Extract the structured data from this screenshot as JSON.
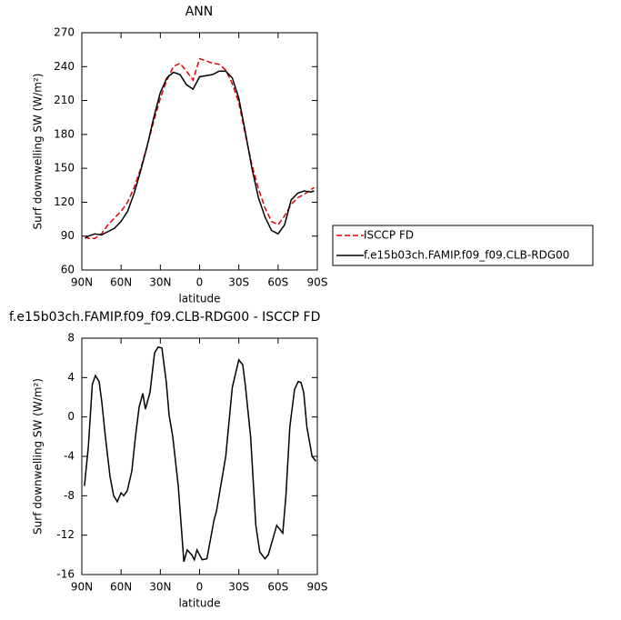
{
  "chart_data": [
    {
      "type": "line",
      "title": "ANN",
      "xlabel": "latitude",
      "ylabel": "Surf downwelling SW (W/m²)",
      "x": [
        87.5,
        85,
        80,
        75,
        70,
        65,
        60,
        55,
        50,
        45,
        40,
        35,
        30,
        25,
        20,
        15,
        10,
        5,
        0,
        -5,
        -10,
        -15,
        -20,
        -25,
        -30,
        -35,
        -40,
        -45,
        -50,
        -55,
        -60,
        -65,
        -70,
        -75,
        -80,
        -85,
        -87.5
      ],
      "series": [
        {
          "name": "ISCCP FD",
          "color": "#e00000",
          "linestyle": "dashed",
          "values": [
            90,
            88,
            88,
            92,
            100,
            106,
            112,
            120,
            133,
            150,
            170,
            192,
            212,
            228,
            240,
            243,
            236,
            228,
            247,
            245,
            243,
            242,
            237,
            225,
            208,
            180,
            153,
            132,
            115,
            103,
            100,
            108,
            118,
            124,
            127,
            131,
            133
          ]
        },
        {
          "name": "f.e15b03ch.FAMIP.f09_f09.CLB-RDG00",
          "color": "#000000",
          "linestyle": "solid",
          "values": [
            88,
            90,
            92,
            91,
            94,
            97,
            103,
            112,
            128,
            148,
            170,
            195,
            217,
            230,
            235,
            233,
            224,
            220,
            231,
            232,
            233,
            236,
            236,
            230,
            212,
            182,
            150,
            124,
            107,
            95,
            92,
            100,
            122,
            128,
            130,
            129,
            130
          ]
        }
      ],
      "xlim": [
        90,
        -90
      ],
      "xticks": [
        {
          "value": 90,
          "label": "90N"
        },
        {
          "value": 60,
          "label": "60N"
        },
        {
          "value": 30,
          "label": "30N"
        },
        0,
        {
          "value": -30,
          "label": "30S"
        },
        {
          "value": -60,
          "label": "60S"
        },
        {
          "value": -90,
          "label": "90S"
        }
      ],
      "ylim": [
        60,
        270
      ],
      "yticks": [
        60,
        90,
        120,
        150,
        180,
        210,
        240,
        270
      ],
      "legend": "right"
    },
    {
      "type": "line",
      "title": "f.e15b03ch.FAMIP.f09_f09.CLB-RDG00 - ISCCP FD",
      "xlabel": "latitude",
      "ylabel": "Surf downwelling SW (W/m²)",
      "x": [
        88,
        85,
        82,
        79.6,
        76.8,
        74.7,
        72,
        68.5,
        65.7,
        62.9,
        60,
        58,
        55.3,
        51.8,
        49,
        46.2,
        43.4,
        41.4,
        37.9,
        34.4,
        31.6,
        28.8,
        25.4,
        23.3,
        20.5,
        16.3,
        12,
        9.5,
        6,
        4,
        2,
        -2,
        -5.6,
        -11,
        -13,
        -20,
        -25,
        -30,
        -33,
        -35,
        -39,
        -43,
        -46,
        -50,
        -52.5,
        -59,
        -63.6,
        -66,
        -69,
        -72.6,
        -75.4,
        -77.5,
        -79.6,
        -82,
        -86,
        -89
      ],
      "series": [
        {
          "color": "#000000",
          "linestyle": "solid",
          "values": [
            -7,
            -3,
            3.3,
            4.2,
            3.6,
            1.5,
            -2,
            -6,
            -8,
            -8.6,
            -7.7,
            -8,
            -7.5,
            -5.5,
            -2,
            1,
            2.4,
            0.8,
            2.5,
            6.5,
            7.1,
            7,
            3.5,
            0.2,
            -2,
            -7,
            -14.7,
            -13.5,
            -14,
            -14.5,
            -13.5,
            -14.5,
            -14.4,
            -10.5,
            -9.5,
            -4,
            3,
            5.8,
            5.3,
            3.2,
            -2,
            -11,
            -13.7,
            -14.4,
            -14,
            -11,
            -11.8,
            -8,
            -1,
            2.8,
            3.6,
            3.5,
            2.5,
            -1,
            -4,
            -4.5
          ]
        }
      ],
      "xlim": [
        90,
        -90
      ],
      "xticks": [
        {
          "value": 90,
          "label": "90N"
        },
        {
          "value": 60,
          "label": "60N"
        },
        {
          "value": 30,
          "label": "30N"
        },
        0,
        {
          "value": -30,
          "label": "30S"
        },
        {
          "value": -60,
          "label": "60S"
        },
        {
          "value": -90,
          "label": "90S"
        }
      ],
      "ylim": [
        -16,
        8
      ],
      "yticks": [
        -16,
        -12,
        -8,
        -4,
        0,
        4,
        8
      ]
    }
  ]
}
